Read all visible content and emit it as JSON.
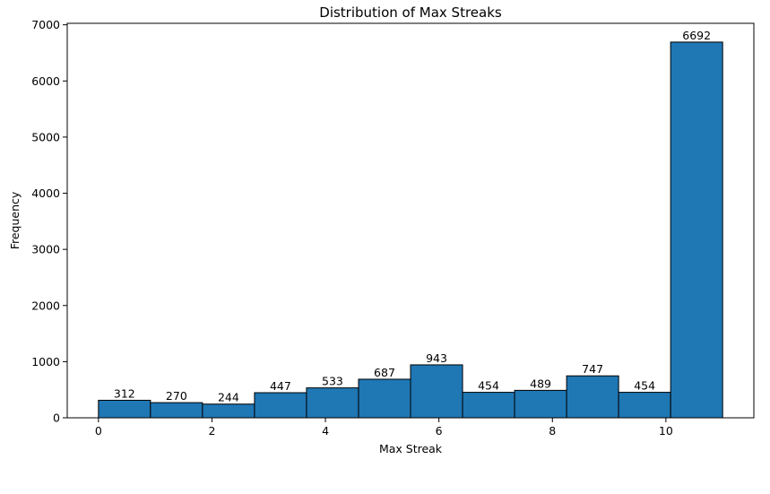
{
  "chart_data": {
    "type": "bar",
    "title": "Distribution of Max Streaks",
    "xlabel": "Max Streak",
    "ylabel": "Frequency",
    "xlim": [
      -0.55,
      11.55
    ],
    "ylim": [
      0,
      7026.6
    ],
    "x_ticks": [
      0,
      2,
      4,
      6,
      8,
      10
    ],
    "y_ticks": [
      0,
      1000,
      2000,
      3000,
      4000,
      5000,
      6000,
      7000
    ],
    "bins": [
      {
        "start": 0.0,
        "end": 0.9167,
        "value": 312
      },
      {
        "start": 0.9167,
        "end": 1.8333,
        "value": 270
      },
      {
        "start": 1.8333,
        "end": 2.75,
        "value": 244
      },
      {
        "start": 2.75,
        "end": 3.6667,
        "value": 447
      },
      {
        "start": 3.6667,
        "end": 4.5833,
        "value": 533
      },
      {
        "start": 4.5833,
        "end": 5.5,
        "value": 687
      },
      {
        "start": 5.5,
        "end": 6.4167,
        "value": 943
      },
      {
        "start": 6.4167,
        "end": 7.3333,
        "value": 454
      },
      {
        "start": 7.3333,
        "end": 8.25,
        "value": 489
      },
      {
        "start": 8.25,
        "end": 9.1667,
        "value": 747
      },
      {
        "start": 9.1667,
        "end": 10.0833,
        "value": 454
      },
      {
        "start": 10.0833,
        "end": 11.0,
        "value": 6692
      }
    ],
    "bar_color": "#1f77b4",
    "edge_color": "#000000",
    "grid": false,
    "legend": "none"
  }
}
